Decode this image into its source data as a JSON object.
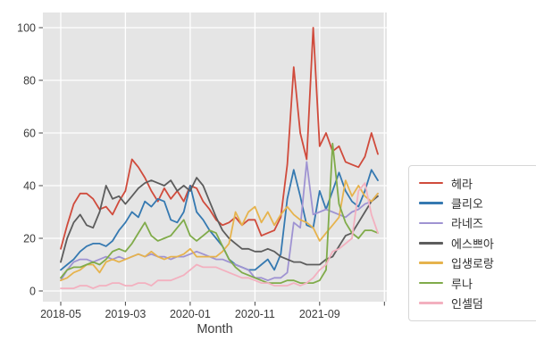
{
  "chart_data": {
    "type": "line",
    "title": "",
    "xlabel": "Month",
    "ylabel": "",
    "x_start": "2018-05",
    "x_end": "2022-06",
    "x_unit": "month-index from 2018-05",
    "x_tick_positions": [
      0,
      10,
      20,
      30,
      40,
      50
    ],
    "x_tick_labels": [
      "2018-05",
      "2019-03",
      "2020-01",
      "2020-11",
      "2021-09",
      ""
    ],
    "y_ticks": [
      0,
      20,
      40,
      60,
      80,
      100
    ],
    "ylim": [
      -4,
      106
    ],
    "grid": true,
    "legend_position": "right-outside",
    "colors": {
      "plot_background": "#e5e5e5",
      "grid_color": "#ffffff",
      "tick_label_color": "#3b3b3b",
      "axis_title_color": "#3d3d3d"
    },
    "series": [
      {
        "name": "헤라",
        "key": "hera",
        "color": "#d04b3c",
        "values": [
          16,
          25,
          33,
          37,
          37,
          35,
          31,
          32,
          29,
          34,
          38,
          50,
          47,
          43,
          38,
          34,
          39,
          35,
          38,
          34,
          40,
          39,
          34,
          31,
          27,
          25,
          26,
          28,
          25,
          27,
          27,
          21,
          22,
          23,
          28,
          48,
          85,
          60,
          50,
          100,
          55,
          60,
          53,
          55,
          49,
          48,
          47,
          51,
          60,
          52
        ]
      },
      {
        "name": "클리오",
        "key": "clio",
        "color": "#3579b1",
        "values": [
          8,
          10,
          12,
          15,
          17,
          18,
          18,
          17,
          19,
          23,
          26,
          30,
          28,
          34,
          32,
          35,
          34,
          27,
          26,
          30,
          40,
          30,
          27,
          23,
          20,
          17,
          12,
          10,
          9,
          8,
          8,
          10,
          12,
          8,
          14,
          35,
          46,
          36,
          25,
          24,
          38,
          31,
          38,
          45,
          38,
          34,
          32,
          38,
          46,
          42
        ]
      },
      {
        "name": "라네즈",
        "key": "laneige",
        "color": "#9f93d2",
        "values": [
          4,
          8,
          11,
          12,
          12,
          11,
          12,
          13,
          12,
          13,
          12,
          13,
          14,
          13,
          14,
          13,
          13,
          12,
          13,
          13,
          14,
          15,
          14,
          13,
          12,
          12,
          11,
          10,
          9,
          8,
          5,
          5,
          4,
          5,
          5,
          7,
          26,
          24,
          49,
          29,
          30,
          31,
          30,
          29,
          28,
          30,
          31,
          33,
          34,
          37
        ]
      },
      {
        "name": "에스쁘아",
        "key": "espoir",
        "color": "#5d5d5d",
        "values": [
          11,
          20,
          26,
          29,
          25,
          24,
          30,
          40,
          35,
          36,
          33,
          36,
          39,
          41,
          42,
          41,
          40,
          42,
          38,
          40,
          38,
          43,
          40,
          34,
          28,
          23,
          20,
          18,
          16,
          16,
          15,
          15,
          16,
          15,
          13,
          12,
          11,
          11,
          10,
          10,
          10,
          12,
          13,
          17,
          21,
          22,
          26,
          30,
          34,
          36
        ]
      },
      {
        "name": "입생로랑",
        "key": "yves-saint-laurent",
        "color": "#e6b34d",
        "values": [
          4,
          5,
          7,
          8,
          10,
          10,
          7,
          11,
          12,
          11,
          12,
          13,
          14,
          13,
          15,
          13,
          12,
          13,
          13,
          14,
          16,
          13,
          13,
          13,
          13,
          15,
          18,
          30,
          25,
          30,
          32,
          26,
          30,
          25,
          29,
          32,
          29,
          27,
          26,
          24,
          19,
          22,
          25,
          28,
          42,
          36,
          40,
          36,
          34,
          37
        ]
      },
      {
        "name": "루나",
        "key": "luna",
        "color": "#80ab4a",
        "values": [
          5,
          8,
          9,
          9,
          10,
          11,
          10,
          12,
          15,
          16,
          15,
          18,
          22,
          26,
          21,
          19,
          20,
          21,
          24,
          27,
          21,
          19,
          21,
          23,
          22,
          17,
          12,
          9,
          7,
          6,
          5,
          4,
          3,
          3,
          3,
          4,
          4,
          3,
          3,
          3,
          4,
          8,
          56,
          33,
          26,
          22,
          20,
          23,
          23,
          22
        ]
      },
      {
        "name": "인셀덤",
        "key": "incellderm",
        "color": "#f3b0bf",
        "values": [
          1,
          1,
          1,
          2,
          2,
          1,
          2,
          2,
          3,
          3,
          2,
          2,
          3,
          3,
          2,
          4,
          4,
          4,
          5,
          6,
          8,
          10,
          9,
          9,
          9,
          8,
          7,
          6,
          5,
          5,
          4,
          3,
          3,
          2,
          2,
          2,
          3,
          2,
          3,
          5,
          8,
          10,
          15,
          16,
          18,
          20,
          38,
          41,
          29,
          22
        ]
      }
    ]
  }
}
